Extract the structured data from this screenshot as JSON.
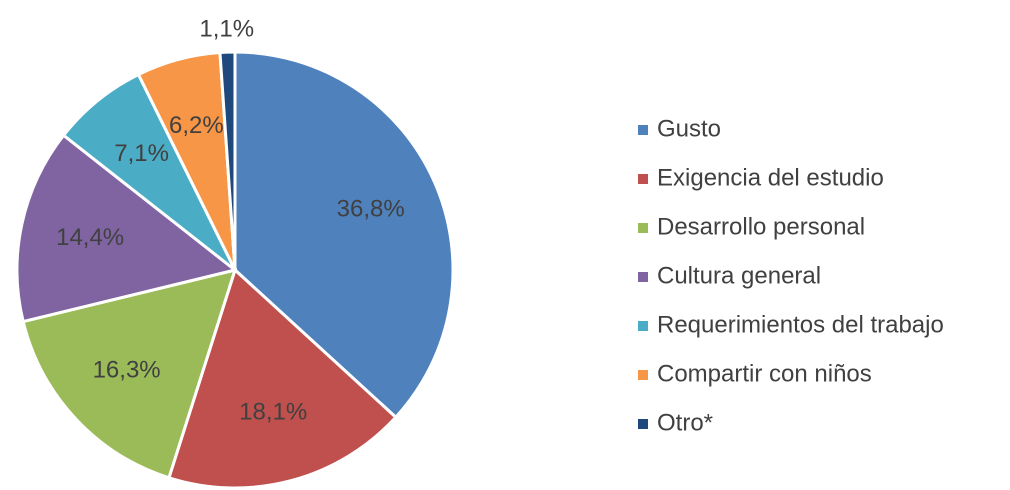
{
  "chart_data": {
    "type": "pie",
    "categories": [
      "Gusto",
      "Exigencia del estudio",
      "Desarrollo personal",
      "Cultura general",
      "Requerimientos del trabajo",
      "Compartir con niños",
      "Otro*"
    ],
    "values": [
      36.8,
      18.1,
      16.3,
      14.4,
      7.1,
      6.2,
      1.1
    ],
    "value_labels": [
      "36,8%",
      "18,1%",
      "16,3%",
      "14,4%",
      "7,1%",
      "6,2%",
      "1,1%"
    ],
    "colors": [
      "#4f81bd",
      "#c0504d",
      "#9bbb59",
      "#8064a2",
      "#4bacc6",
      "#f79646",
      "#1f497d"
    ],
    "legend": "right"
  }
}
